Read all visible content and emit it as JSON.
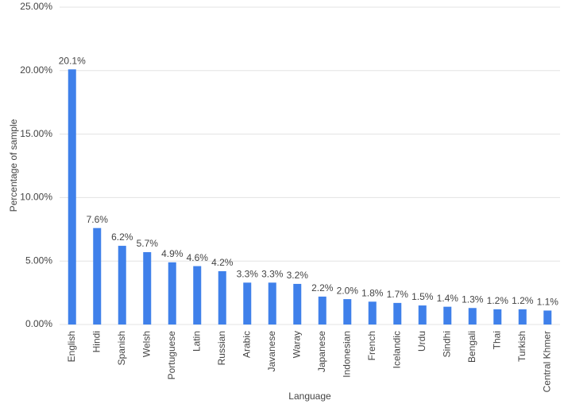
{
  "chart_data": {
    "type": "bar",
    "x_label": "Language",
    "y_label": "Percentage of sample",
    "categories": [
      "English",
      "Hindi",
      "Spanish",
      "Welsh",
      "Portuguese",
      "Latin",
      "Russian",
      "Arabic",
      "Javanese",
      "Waray",
      "Japanese",
      "Indonesian",
      "French",
      "Icelandic",
      "Urdu",
      "Sindhi",
      "Bengali",
      "Thai",
      "Turkish",
      "Central Khmer"
    ],
    "values": [
      20.1,
      7.6,
      6.2,
      5.7,
      4.9,
      4.6,
      4.2,
      3.3,
      3.3,
      3.2,
      2.2,
      2.0,
      1.8,
      1.7,
      1.5,
      1.4,
      1.3,
      1.2,
      1.2,
      1.1
    ],
    "value_labels": [
      "20.1%",
      "7.6%",
      "6.2%",
      "5.7%",
      "4.9%",
      "4.6%",
      "4.2%",
      "3.3%",
      "3.3%",
      "3.2%",
      "2.2%",
      "2.0%",
      "1.8%",
      "1.7%",
      "1.5%",
      "1.4%",
      "1.3%",
      "1.2%",
      "1.2%",
      "1.1%"
    ],
    "color": "#3f80ea",
    "ylim": [
      0,
      25
    ],
    "yticks": [
      {
        "value": 0,
        "label": "0.00%"
      },
      {
        "value": 5,
        "label": "5.00%"
      },
      {
        "value": 10,
        "label": "10.00%"
      },
      {
        "value": 15,
        "label": "15.00%"
      },
      {
        "value": 20,
        "label": "20.00%"
      },
      {
        "value": 25,
        "label": "25.00%"
      }
    ],
    "grid": true
  }
}
